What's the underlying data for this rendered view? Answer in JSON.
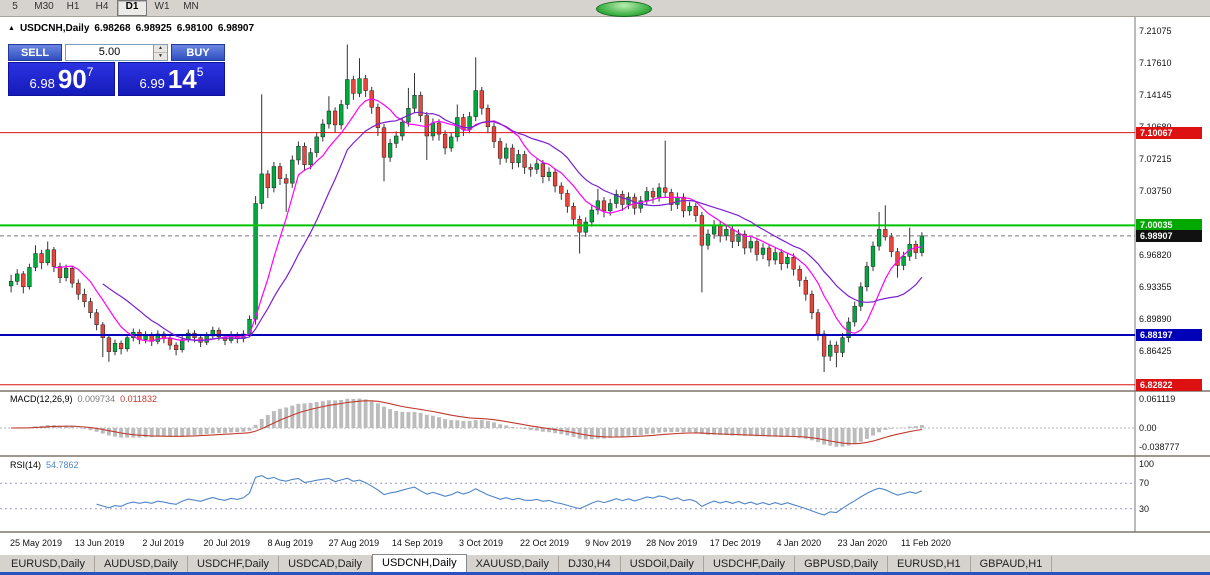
{
  "toolbar": {
    "items": [
      "5",
      "M30",
      "H1",
      "H4",
      "D1",
      "W1",
      "MN"
    ],
    "active": "D1"
  },
  "chart_header": {
    "symbol": "USDCNH,Daily",
    "open": "6.98268",
    "high": "6.98925",
    "low": "6.98100",
    "close": "6.98907"
  },
  "trade_panel": {
    "sell_label": "SELL",
    "buy_label": "BUY",
    "volume": "5.00",
    "sell_price": {
      "base": "6.98",
      "big": "90",
      "sup": "7"
    },
    "buy_price": {
      "base": "6.99",
      "big": "14",
      "sup": "5"
    }
  },
  "chart_data": {
    "type": "candlestick",
    "symbol": "USDCNH",
    "timeframe": "Daily",
    "ylim": [
      6.8225,
      7.2245
    ],
    "yticks": [
      7.21075,
      7.1761,
      7.14145,
      7.1068,
      7.07215,
      7.0375,
      7.00285,
      6.9682,
      6.93355,
      6.8989,
      6.86425,
      6.8296
    ],
    "xtick_labels": [
      "25 May 2019",
      "13 Jun 2019",
      "2 Jul 2019",
      "20 Jul 2019",
      "8 Aug 2019",
      "27 Aug 2019",
      "14 Sep 2019",
      "3 Oct 2019",
      "22 Oct 2019",
      "9 Nov 2019",
      "28 Nov 2019",
      "17 Dec 2019",
      "4 Jan 2020",
      "23 Jan 2020",
      "11 Feb 2020"
    ],
    "hlines": [
      {
        "value": 7.10067,
        "label": "7.10067",
        "color": "#dd1111",
        "box": "#dd1111",
        "width": 1
      },
      {
        "value": 7.00035,
        "label": "7.00035",
        "color": "#00c400",
        "box": "#00a800",
        "width": 2
      },
      {
        "value": 6.98907,
        "label": "6.98907",
        "color": "#777777",
        "box": "#111111",
        "width": 1,
        "style": "dashed"
      },
      {
        "value": 6.88197,
        "label": "6.88197",
        "color": "#0000b8",
        "box": "#0000b8",
        "width": 2
      },
      {
        "value": 6.82822,
        "label": "6.82822",
        "color": "#dd1111",
        "box": "#dd1111",
        "width": 1
      }
    ],
    "ma": [
      {
        "period": 8,
        "color": "#ff00ff"
      },
      {
        "period": 16,
        "color": "#7a1fd2"
      }
    ],
    "macd": {
      "name": "MACD(12,26,9)",
      "main_value": "0.009734",
      "signal_value": "0.011832",
      "axis": [
        {
          "v": 0.061119,
          "label": "0.061119"
        },
        {
          "v": 0,
          "label": "0.00"
        },
        {
          "v": -0.038777,
          "label": "-0.038777"
        }
      ]
    },
    "rsi": {
      "name": "RSI(14)",
      "value": "54.7862",
      "period": 14,
      "levels": [
        70,
        30
      ],
      "ticks": [
        {
          "v": 100,
          "label": "100"
        },
        {
          "v": 70,
          "label": "70"
        },
        {
          "v": 30,
          "label": "30"
        }
      ]
    },
    "ohlc": [
      [
        6.935,
        6.947,
        6.928,
        6.94
      ],
      [
        6.94,
        6.953,
        6.936,
        6.948
      ],
      [
        6.948,
        6.951,
        6.927,
        6.934
      ],
      [
        6.934,
        6.959,
        6.931,
        6.955
      ],
      [
        6.955,
        6.979,
        6.951,
        6.97
      ],
      [
        6.97,
        6.974,
        6.953,
        6.96
      ],
      [
        6.96,
        6.983,
        6.957,
        6.974
      ],
      [
        6.974,
        6.977,
        6.95,
        6.956
      ],
      [
        6.956,
        6.96,
        6.938,
        6.944
      ],
      [
        6.944,
        6.958,
        6.94,
        6.954
      ],
      [
        6.954,
        6.957,
        6.933,
        6.938
      ],
      [
        6.938,
        6.942,
        6.92,
        6.926
      ],
      [
        6.926,
        6.932,
        6.912,
        6.918
      ],
      [
        6.918,
        6.922,
        6.9,
        6.906
      ],
      [
        6.906,
        6.91,
        6.887,
        6.893
      ],
      [
        6.893,
        6.896,
        6.858,
        6.879
      ],
      [
        6.879,
        6.882,
        6.853,
        6.864
      ],
      [
        6.864,
        6.877,
        6.86,
        6.873
      ],
      [
        6.873,
        6.876,
        6.861,
        6.867
      ],
      [
        6.867,
        6.883,
        6.864,
        6.879
      ],
      [
        6.879,
        6.889,
        6.875,
        6.885
      ],
      [
        6.885,
        6.888,
        6.872,
        6.877
      ],
      [
        6.877,
        6.886,
        6.873,
        6.882
      ],
      [
        6.882,
        6.885,
        6.87,
        6.875
      ],
      [
        6.875,
        6.887,
        6.872,
        6.883
      ],
      [
        6.883,
        6.886,
        6.873,
        6.878
      ],
      [
        6.878,
        6.881,
        6.866,
        6.871
      ],
      [
        6.871,
        6.874,
        6.86,
        6.866
      ],
      [
        6.866,
        6.881,
        6.863,
        6.877
      ],
      [
        6.877,
        6.888,
        6.874,
        6.884
      ],
      [
        6.884,
        6.887,
        6.874,
        6.879
      ],
      [
        6.879,
        6.882,
        6.869,
        6.874
      ],
      [
        6.874,
        6.885,
        6.871,
        6.881
      ],
      [
        6.881,
        6.891,
        6.878,
        6.887
      ],
      [
        6.887,
        6.89,
        6.876,
        6.88
      ],
      [
        6.88,
        6.883,
        6.871,
        6.876
      ],
      [
        6.876,
        6.886,
        6.873,
        6.882
      ],
      [
        6.882,
        6.885,
        6.873,
        6.878
      ],
      [
        6.878,
        6.887,
        6.874,
        6.883
      ],
      [
        6.883,
        6.903,
        6.88,
        6.899
      ],
      [
        6.899,
        7.032,
        6.893,
        7.024
      ],
      [
        7.024,
        7.142,
        7.018,
        7.056
      ],
      [
        7.056,
        7.06,
        7.03,
        7.041
      ],
      [
        7.041,
        7.069,
        7.036,
        7.064
      ],
      [
        7.064,
        7.068,
        7.044,
        7.051
      ],
      [
        7.051,
        7.056,
        7.015,
        7.046
      ],
      [
        7.046,
        7.076,
        7.041,
        7.071
      ],
      [
        7.071,
        7.091,
        7.066,
        7.086
      ],
      [
        7.086,
        7.09,
        7.059,
        7.066
      ],
      [
        7.066,
        7.084,
        7.061,
        7.079
      ],
      [
        7.079,
        7.101,
        7.074,
        7.096
      ],
      [
        7.096,
        7.115,
        7.091,
        7.11
      ],
      [
        7.11,
        7.14,
        7.105,
        7.124
      ],
      [
        7.124,
        7.128,
        7.101,
        7.109
      ],
      [
        7.109,
        7.136,
        7.104,
        7.131
      ],
      [
        7.131,
        7.196,
        7.126,
        7.158
      ],
      [
        7.158,
        7.162,
        7.136,
        7.143
      ],
      [
        7.143,
        7.181,
        7.139,
        7.159
      ],
      [
        7.159,
        7.163,
        7.139,
        7.146
      ],
      [
        7.146,
        7.15,
        7.121,
        7.128
      ],
      [
        7.128,
        7.132,
        7.097,
        7.106
      ],
      [
        7.106,
        7.11,
        7.048,
        7.074
      ],
      [
        7.074,
        7.094,
        7.069,
        7.089
      ],
      [
        7.089,
        7.102,
        7.084,
        7.097
      ],
      [
        7.097,
        7.117,
        7.092,
        7.112
      ],
      [
        7.112,
        7.149,
        7.107,
        7.127
      ],
      [
        7.127,
        7.165,
        7.122,
        7.141
      ],
      [
        7.141,
        7.145,
        7.112,
        7.119
      ],
      [
        7.119,
        7.123,
        7.071,
        7.097
      ],
      [
        7.097,
        7.116,
        7.092,
        7.111
      ],
      [
        7.111,
        7.115,
        7.092,
        7.099
      ],
      [
        7.099,
        7.103,
        7.077,
        7.084
      ],
      [
        7.084,
        7.101,
        7.08,
        7.096
      ],
      [
        7.096,
        7.131,
        7.091,
        7.117
      ],
      [
        7.117,
        7.121,
        7.097,
        7.104
      ],
      [
        7.104,
        7.123,
        7.1,
        7.118
      ],
      [
        7.118,
        7.182,
        7.113,
        7.146
      ],
      [
        7.146,
        7.15,
        7.12,
        7.127
      ],
      [
        7.127,
        7.131,
        7.1,
        7.107
      ],
      [
        7.107,
        7.111,
        7.084,
        7.091
      ],
      [
        7.091,
        7.095,
        7.066,
        7.073
      ],
      [
        7.073,
        7.089,
        7.068,
        7.084
      ],
      [
        7.084,
        7.088,
        7.061,
        7.068
      ],
      [
        7.068,
        7.082,
        7.063,
        7.077
      ],
      [
        7.077,
        7.081,
        7.056,
        7.063
      ],
      [
        7.063,
        7.067,
        7.053,
        7.061
      ],
      [
        7.061,
        7.072,
        7.056,
        7.067
      ],
      [
        7.067,
        7.071,
        7.046,
        7.053
      ],
      [
        7.053,
        7.063,
        7.048,
        7.058
      ],
      [
        7.058,
        7.062,
        7.036,
        7.043
      ],
      [
        7.043,
        7.047,
        7.028,
        7.035
      ],
      [
        7.035,
        7.039,
        7.014,
        7.021
      ],
      [
        7.021,
        7.025,
        7.0,
        7.007
      ],
      [
        7.007,
        7.011,
        6.97,
        6.993
      ],
      [
        6.993,
        7.009,
        6.988,
        7.004
      ],
      [
        7.004,
        7.022,
        6.999,
        7.017
      ],
      [
        7.017,
        7.04,
        7.012,
        7.027
      ],
      [
        7.027,
        7.031,
        7.009,
        7.016
      ],
      [
        7.016,
        7.029,
        7.011,
        7.024
      ],
      [
        7.024,
        7.039,
        7.019,
        7.034
      ],
      [
        7.034,
        7.038,
        7.016,
        7.023
      ],
      [
        7.023,
        7.036,
        7.018,
        7.031
      ],
      [
        7.031,
        7.035,
        7.012,
        7.019
      ],
      [
        7.019,
        7.032,
        7.014,
        7.027
      ],
      [
        7.027,
        7.042,
        7.022,
        7.037
      ],
      [
        7.037,
        7.041,
        7.024,
        7.031
      ],
      [
        7.031,
        7.046,
        7.026,
        7.041
      ],
      [
        7.041,
        7.092,
        7.031,
        7.036
      ],
      [
        7.036,
        7.04,
        7.016,
        7.023
      ],
      [
        7.023,
        7.036,
        7.018,
        7.031
      ],
      [
        7.031,
        7.035,
        7.009,
        7.016
      ],
      [
        7.016,
        7.026,
        7.011,
        7.021
      ],
      [
        7.021,
        7.025,
        7.004,
        7.011
      ],
      [
        7.011,
        7.015,
        6.928,
        6.979
      ],
      [
        6.979,
        6.996,
        6.974,
        6.991
      ],
      [
        6.991,
        7.006,
        6.986,
        7.001
      ],
      [
        7.001,
        7.005,
        6.982,
        6.989
      ],
      [
        6.989,
        7.001,
        6.984,
        6.996
      ],
      [
        6.996,
        7.0,
        6.976,
        6.983
      ],
      [
        6.983,
        6.996,
        6.978,
        6.991
      ],
      [
        6.991,
        6.995,
        6.969,
        6.976
      ],
      [
        6.976,
        6.988,
        6.971,
        6.983
      ],
      [
        6.983,
        6.987,
        6.962,
        6.969
      ],
      [
        6.969,
        6.981,
        6.964,
        6.976
      ],
      [
        6.976,
        6.98,
        6.956,
        6.963
      ],
      [
        6.963,
        6.976,
        6.958,
        6.971
      ],
      [
        6.971,
        6.975,
        6.952,
        6.959
      ],
      [
        6.959,
        6.971,
        6.954,
        6.966
      ],
      [
        6.966,
        6.97,
        6.946,
        6.953
      ],
      [
        6.953,
        6.957,
        6.934,
        6.941
      ],
      [
        6.941,
        6.945,
        6.919,
        6.926
      ],
      [
        6.926,
        6.93,
        6.899,
        6.906
      ],
      [
        6.906,
        6.91,
        6.876,
        6.883
      ],
      [
        6.883,
        6.887,
        6.842,
        6.859
      ],
      [
        6.859,
        6.876,
        6.854,
        6.871
      ],
      [
        6.871,
        6.875,
        6.847,
        6.863
      ],
      [
        6.863,
        6.884,
        6.858,
        6.879
      ],
      [
        6.879,
        6.901,
        6.874,
        6.896
      ],
      [
        6.896,
        6.918,
        6.891,
        6.913
      ],
      [
        6.913,
        6.939,
        6.908,
        6.934
      ],
      [
        6.934,
        6.961,
        6.929,
        6.956
      ],
      [
        6.956,
        6.983,
        6.951,
        6.978
      ],
      [
        6.978,
        7.015,
        6.973,
        6.996
      ],
      [
        6.996,
        7.022,
        6.984,
        6.988
      ],
      [
        6.988,
        6.992,
        6.966,
        6.972
      ],
      [
        6.972,
        6.976,
        6.944,
        6.957
      ],
      [
        6.957,
        6.972,
        6.952,
        6.967
      ],
      [
        6.967,
        6.998,
        6.962,
        6.98
      ],
      [
        6.98,
        6.984,
        6.964,
        6.971
      ],
      [
        6.971,
        6.993,
        6.967,
        6.989
      ]
    ]
  },
  "tabs": {
    "items": [
      "EURUSD,Daily",
      "AUDUSD,Daily",
      "USDCHF,Daily",
      "USDCAD,Daily",
      "USDCNH,Daily",
      "XAUUSD,Daily",
      "DJ30,H4",
      "USDOil,Daily",
      "USDCHF,Daily",
      "GBPUSD,Daily",
      "EURUSD,H1",
      "GBPAUD,H1"
    ],
    "active_index": 4
  }
}
